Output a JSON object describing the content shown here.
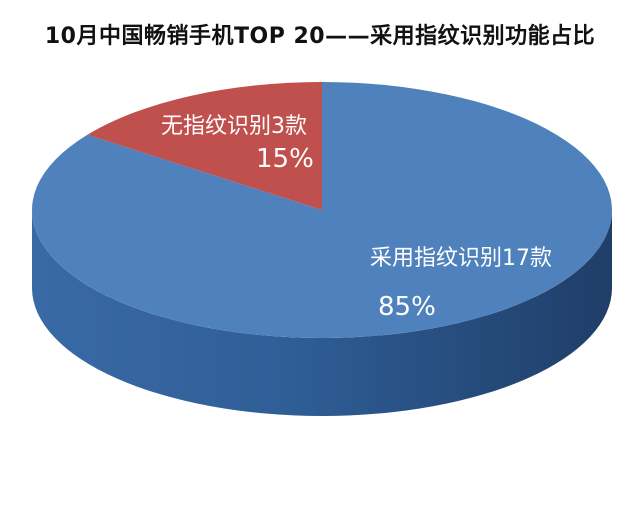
{
  "chart_data": {
    "type": "pie",
    "title": "10月中国畅销手机TOP 20——采用指纹识别功能占比",
    "slices": [
      {
        "label": "采用指纹识别17款",
        "count": 17,
        "percent_label": "85%",
        "value": 85,
        "color": "#4F81BD"
      },
      {
        "label": "无指纹识别3款",
        "count": 3,
        "percent_label": "15%",
        "value": 15,
        "color": "#C0504D"
      }
    ],
    "legend": "none",
    "style": "3d"
  }
}
